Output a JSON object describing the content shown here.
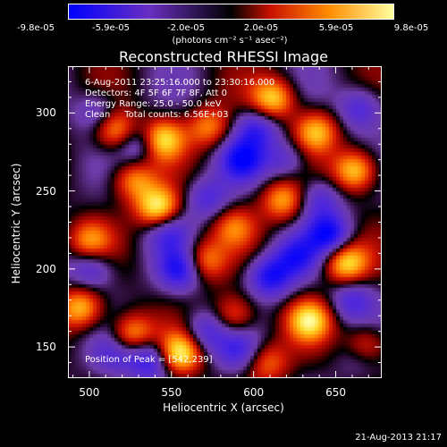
{
  "chart_data": {
    "type": "heatmap",
    "title": "Reconstructed RHESSI Image",
    "xlabel": "Heliocentric X (arcsec)",
    "ylabel": "Heliocentric Y (arcsec)",
    "xlim": [
      487,
      678
    ],
    "ylim": [
      130,
      330
    ],
    "x_ticks": [
      "500",
      "550",
      "600",
      "650"
    ],
    "y_ticks": [
      "300",
      "250",
      "200",
      "150"
    ],
    "colorbar": {
      "ticks": [
        "-9.8e-05",
        "-5.9e-05",
        "-2.0e-05",
        "2.0e-05",
        "5.9e-05",
        "9.8e-05"
      ],
      "units": "(photons cm⁻² s⁻¹ asec⁻²)",
      "range": [
        -9.8e-05,
        9.8e-05
      ],
      "colors": [
        "#0000ff",
        "#6a2fc0",
        "#000000",
        "#c81000",
        "#ff8c00",
        "#ffffa0"
      ]
    },
    "annotations": {
      "time": "6-Aug-2011 23:25:16.000 to 23:30:16.000",
      "detectors": "Detectors: 4F 5F 6F 7F 8F, Att 0",
      "energy": "Energy Range: 25.0 - 50.0 keV",
      "clean": "Clean     Total counts: 6.56E+03",
      "peak": "Position of Peak = [542,239]"
    },
    "peak": [
      542,
      239
    ],
    "sources": [
      {
        "x": 516,
        "y": 289,
        "v": 0.8
      },
      {
        "x": 544,
        "y": 283,
        "v": 0.9
      },
      {
        "x": 573,
        "y": 291,
        "v": 0.6
      },
      {
        "x": 612,
        "y": 309,
        "v": 0.85
      },
      {
        "x": 638,
        "y": 288,
        "v": 0.75
      },
      {
        "x": 662,
        "y": 263,
        "v": 0.9
      },
      {
        "x": 618,
        "y": 244,
        "v": 0.7
      },
      {
        "x": 542,
        "y": 239,
        "v": 1.0
      },
      {
        "x": 527,
        "y": 257,
        "v": 0.65
      },
      {
        "x": 500,
        "y": 218,
        "v": 0.6
      },
      {
        "x": 569,
        "y": 205,
        "v": 0.7
      },
      {
        "x": 588,
        "y": 227,
        "v": 0.5
      },
      {
        "x": 656,
        "y": 204,
        "v": 0.9
      },
      {
        "x": 634,
        "y": 167,
        "v": 0.85
      },
      {
        "x": 668,
        "y": 150,
        "v": 0.75
      },
      {
        "x": 495,
        "y": 175,
        "v": 0.8
      },
      {
        "x": 526,
        "y": 158,
        "v": 0.75
      },
      {
        "x": 555,
        "y": 146,
        "v": 0.95
      },
      {
        "x": 588,
        "y": 170,
        "v": 0.6
      },
      {
        "x": 608,
        "y": 140,
        "v": 0.55
      },
      {
        "x": 537,
        "y": 142,
        "v": -0.75
      },
      {
        "x": 556,
        "y": 200,
        "v": -0.8
      },
      {
        "x": 548,
        "y": 224,
        "v": -0.5
      },
      {
        "x": 530,
        "y": 280,
        "v": -0.55
      },
      {
        "x": 593,
        "y": 270,
        "v": -0.75
      },
      {
        "x": 602,
        "y": 290,
        "v": -0.6
      },
      {
        "x": 646,
        "y": 222,
        "v": -0.85
      },
      {
        "x": 640,
        "y": 245,
        "v": -0.5
      },
      {
        "x": 571,
        "y": 160,
        "v": -0.55
      },
      {
        "x": 610,
        "y": 195,
        "v": -0.8
      },
      {
        "x": 626,
        "y": 208,
        "v": -0.6
      },
      {
        "x": 660,
        "y": 180,
        "v": -0.5
      },
      {
        "x": 591,
        "y": 148,
        "v": -0.5
      },
      {
        "x": 501,
        "y": 200,
        "v": -0.55
      },
      {
        "x": 505,
        "y": 300,
        "v": -0.45
      },
      {
        "x": 572,
        "y": 245,
        "v": -0.5
      },
      {
        "x": 665,
        "y": 303,
        "v": -0.55
      },
      {
        "x": 620,
        "y": 270,
        "v": -0.45
      },
      {
        "x": 515,
        "y": 145,
        "v": -0.4
      },
      {
        "x": 665,
        "y": 145,
        "v": -0.4
      }
    ]
  },
  "footer": {
    "timestamp": "21-Aug-2013 21:17"
  }
}
